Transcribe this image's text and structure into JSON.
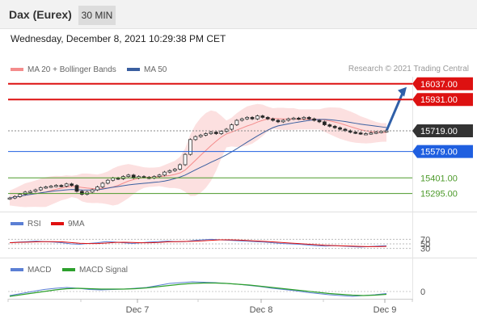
{
  "header": {
    "instrument": "Dax (Eurex)",
    "interval": "30 MIN"
  },
  "datetime": "Wednesday, December 8, 2021 10:29:38 PM CET",
  "legends": {
    "main": [
      {
        "label": "MA 20 + Bollinger Bands",
        "color": "#f48c8c"
      },
      {
        "label": "MA 50",
        "color": "#3a5fa0"
      }
    ],
    "rsi": [
      {
        "label": "RSI",
        "color": "#5b7fd4"
      },
      {
        "label": "9MA",
        "color": "#e01010"
      }
    ],
    "macd": [
      {
        "label": "MACD",
        "color": "#5b7fd4"
      },
      {
        "label": "MACD Signal",
        "color": "#2ca02c"
      }
    ]
  },
  "credit": "Research © 2021 Trading Central",
  "chart_data": {
    "type": "line",
    "price_range": [
      15195,
      16085
    ],
    "x_ticks": [
      "Dec 7",
      "Dec 8",
      "Dec 9"
    ],
    "current_price": 15719.0,
    "levels": [
      {
        "label": "16037.00",
        "value": 16037.0,
        "color": "#dd1111",
        "kind": "resistance"
      },
      {
        "label": "15931.00",
        "value": 15931.0,
        "color": "#dd1111",
        "kind": "resistance"
      },
      {
        "label": "15719.00",
        "value": 15719.0,
        "color": "#333333",
        "kind": "current"
      },
      {
        "label": "15579.00",
        "value": 15579.0,
        "color": "#1f5fe0",
        "kind": "pivot"
      },
      {
        "label": "15401.00",
        "value": 15401.0,
        "color": "#4c9a2a",
        "kind": "support"
      },
      {
        "label": "15295.00",
        "value": 15295.0,
        "color": "#4c9a2a",
        "kind": "support"
      }
    ],
    "price_path": [
      15265,
      15275,
      15290,
      15305,
      15310,
      15320,
      15335,
      15340,
      15345,
      15350,
      15345,
      15360,
      15350,
      15310,
      15290,
      15305,
      15320,
      15340,
      15365,
      15385,
      15400,
      15395,
      15410,
      15420,
      15400,
      15410,
      15405,
      15400,
      15410,
      15420,
      15440,
      15450,
      15460,
      15490,
      15560,
      15660,
      15680,
      15690,
      15700,
      15710,
      15700,
      15715,
      15730,
      15760,
      15790,
      15800,
      15810,
      15800,
      15820,
      15810,
      15800,
      15790,
      15780,
      15790,
      15800,
      15805,
      15800,
      15810,
      15800,
      15790,
      15780,
      15760,
      15750,
      15740,
      15730,
      15720,
      15710,
      15705,
      15700,
      15700,
      15705,
      15710,
      15715,
      15719
    ],
    "rsi": {
      "levels": [
        70,
        50,
        30
      ],
      "range": [
        0,
        100
      ],
      "values": [
        55,
        58,
        60,
        62,
        60,
        58,
        55,
        50,
        48,
        52,
        55,
        60,
        58,
        55,
        52,
        55,
        58,
        60,
        62,
        60,
        60,
        65,
        68,
        70,
        68,
        66,
        64,
        62,
        60,
        58,
        55,
        52,
        50,
        48,
        45,
        42,
        40,
        42,
        40,
        38,
        36,
        38,
        40,
        42
      ]
    },
    "macd": {
      "zero_label": "0",
      "macd": [
        -10,
        -5,
        0,
        5,
        8,
        10,
        8,
        5,
        4,
        5,
        6,
        8,
        10,
        15,
        20,
        22,
        24,
        23,
        22,
        20,
        18,
        15,
        12,
        8,
        5,
        2,
        -2,
        -5,
        -8,
        -10,
        -12,
        -10,
        -8,
        -5
      ],
      "signal": [
        -12,
        -8,
        -4,
        0,
        4,
        7,
        8,
        7,
        6,
        6,
        6,
        7,
        9,
        12,
        15,
        18,
        20,
        21,
        21,
        20,
        18,
        16,
        13,
        10,
        7,
        4,
        1,
        -2,
        -5,
        -7,
        -9,
        -10,
        -9,
        -7
      ]
    }
  }
}
